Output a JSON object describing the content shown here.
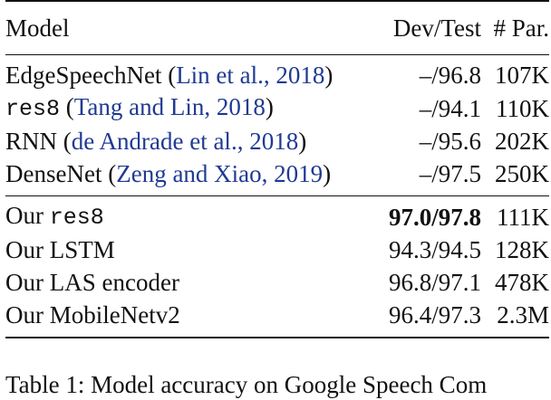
{
  "table": {
    "headers": {
      "model": "Model",
      "dev_test": "Dev/Test",
      "params": "# Par."
    },
    "baselines": [
      {
        "model": "EdgeSpeechNet",
        "model_mono": "",
        "citation": "Lin et al., 2018",
        "dev_test": "–/96.8",
        "params": "107K"
      },
      {
        "model": "",
        "model_mono": "res8",
        "citation": "Tang and Lin, 2018",
        "dev_test": "–/94.1",
        "params": "110K"
      },
      {
        "model": "RNN",
        "model_mono": "",
        "citation": "de Andrade et al., 2018",
        "dev_test": "–/95.6",
        "params": "202K"
      },
      {
        "model": "DenseNet",
        "model_mono": "",
        "citation": "Zeng and Xiao, 2019",
        "dev_test": "–/97.5",
        "params": "250K"
      }
    ],
    "ours": [
      {
        "prefix": "Our",
        "model_mono": "res8",
        "model": "",
        "dev_test": "97.0/97.8",
        "bold": true,
        "params": "111K"
      },
      {
        "prefix": "Our",
        "model_mono": "",
        "model": "LSTM",
        "dev_test": "94.3/94.5",
        "bold": false,
        "params": "128K"
      },
      {
        "prefix": "Our",
        "model_mono": "",
        "model": "LAS encoder",
        "dev_test": "96.8/97.1",
        "bold": false,
        "params": "478K"
      },
      {
        "prefix": "Our",
        "model_mono": "",
        "model": "MobileNetv2",
        "dev_test": "96.4/97.3",
        "bold": false,
        "params": "2.3M"
      }
    ]
  },
  "caption_partial": "Table 1: Model accuracy on Google Speech Com",
  "colors": {
    "citation": "#1f3a93",
    "text": "#111111"
  }
}
